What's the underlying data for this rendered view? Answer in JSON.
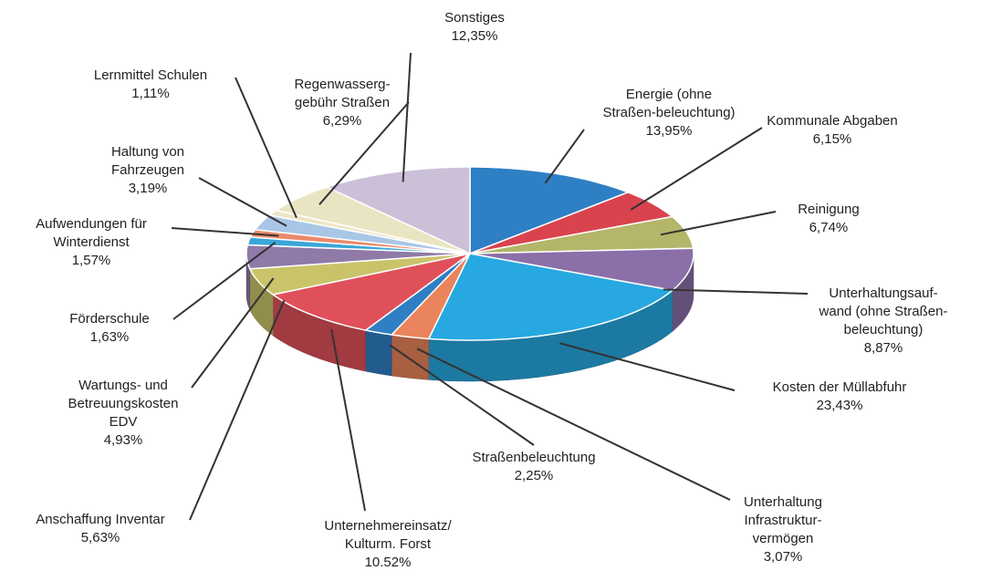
{
  "chart_data": {
    "type": "pie",
    "categories": [
      [
        "Energie (ohne",
        "Straßen-beleuchtung)"
      ],
      [
        "Kommunale Abgaben"
      ],
      [
        "Reinigung"
      ],
      [
        "Unterhaltungsauf-",
        "wand (ohne Straßen-",
        "beleuchtung)"
      ],
      [
        "Kosten der Müllabfuhr"
      ],
      [
        "Unterhaltung",
        "Infrastruktur-",
        "vermögen"
      ],
      [
        "Straßenbeleuchtung"
      ],
      [
        "Unternehmereinsatz/",
        "Kulturm. Forst"
      ],
      [
        "Anschaffung Inventar"
      ],
      [
        "Wartungs- und",
        "Betreuungskosten",
        "EDV"
      ],
      [
        "Förderschule"
      ],
      [
        "Aufwendungen  für",
        "Winterdienst"
      ],
      [
        "Haltung von",
        "Fahrzeugen"
      ],
      [
        "Lernmittel Schulen"
      ],
      [
        "Regenwasserg-",
        "gebühr Straßen"
      ],
      [
        "Sonstiges"
      ]
    ],
    "values": [
      13.95,
      6.15,
      6.74,
      8.87,
      23.43,
      3.07,
      2.25,
      10.52,
      5.63,
      4.93,
      1.63,
      1.57,
      3.19,
      1.11,
      6.29,
      12.35
    ],
    "value_labels": [
      "13,95%",
      "6,15%",
      "6,74%",
      "8,87%",
      "23,43%",
      "3,07%",
      "2,25%",
      "10.52%",
      "5,63%",
      "4,93%",
      "1,63%",
      "1,57%",
      "3,19%",
      "1,11%",
      "6,29%",
      "12,35%"
    ],
    "colors": [
      "#2f7fc4",
      "#d9434e",
      "#b4b66a",
      "#8a6fa8",
      "#27a8e0",
      "#ea845c",
      "#2f7fc4",
      "#e0505a",
      "#c9c46a",
      "#8f7aa8",
      "#3aa6d9",
      "#ea8a6a",
      "#a9c6e6",
      "#ece6c8",
      "#e9e5c2",
      "#cbc0d8"
    ]
  }
}
